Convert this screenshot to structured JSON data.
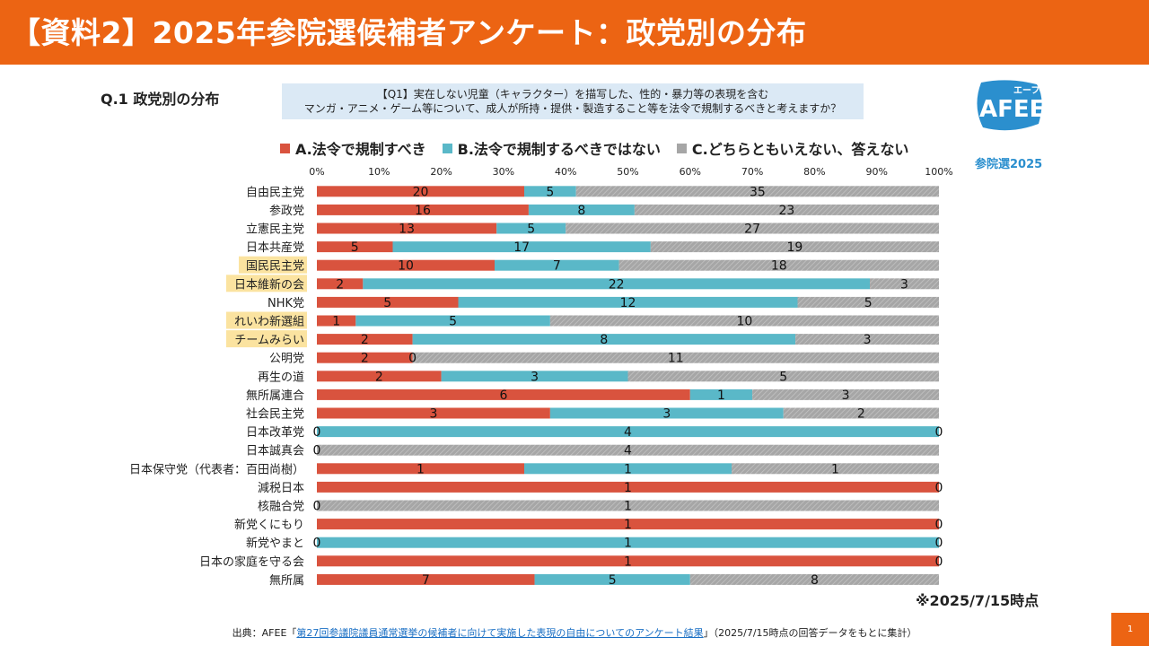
{
  "header": {
    "title": "【資料2】2025年参院選候補者アンケート：政党別の分布"
  },
  "question": {
    "label": "Q.1 政党別の分布",
    "line1": "【Q1】実在しない児童（キャラクター）を描写した、性的・暴力等の表現を含む",
    "line2": "マンガ・アニメ・ゲーム等について、成人が所持・提供・製造すること等を法令で規制するべきと考えますか？"
  },
  "logo": {
    "text_top": "エーフィー",
    "text_main": "AFEE",
    "caption": "参院選2025"
  },
  "legend": [
    {
      "label": "A.法令で規制すべき",
      "color": "#d9533e"
    },
    {
      "label": "B.法令で規制するべきではない",
      "color": "#5ab8c8"
    },
    {
      "label": "C.どちらともいえない、答えない",
      "color": "#a6a6a6"
    }
  ],
  "chart_data": {
    "type": "bar",
    "orientation": "horizontal-stacked-100",
    "x_ticks": [
      "0%",
      "10%",
      "20%",
      "30%",
      "40%",
      "50%",
      "60%",
      "70%",
      "80%",
      "90%",
      "100%"
    ],
    "xlim": [
      0,
      100
    ],
    "categories": [
      "自由民主党",
      "参政党",
      "立憲民主党",
      "日本共産党",
      "国民民主党",
      "日本維新の会",
      "NHK党",
      "れいわ新選組",
      "チームみらい",
      "公明党",
      "再生の道",
      "無所属連合",
      "社会民主党",
      "日本改革党",
      "日本誠真会",
      "日本保守党（代表者：百田尚樹）",
      "減税日本",
      "核融合党",
      "新党くにもり",
      "新党やまと",
      "日本の家庭を守る会",
      "無所属"
    ],
    "highlighted": [
      "国民民主党",
      "日本維新の会",
      "れいわ新選組",
      "チームみらい"
    ],
    "series": [
      {
        "name": "A.法令で規制すべき",
        "values": [
          20,
          16,
          13,
          5,
          10,
          2,
          5,
          1,
          2,
          2,
          2,
          6,
          3,
          0,
          0,
          1,
          1,
          0,
          1,
          0,
          1,
          7
        ]
      },
      {
        "name": "B.法令で規制するべきではない",
        "values": [
          5,
          8,
          5,
          17,
          7,
          22,
          12,
          5,
          8,
          0,
          3,
          1,
          3,
          4,
          0,
          1,
          0,
          0,
          0,
          1,
          0,
          5
        ]
      },
      {
        "name": "C.どちらともいえない、答えない",
        "values": [
          35,
          23,
          27,
          19,
          18,
          3,
          5,
          10,
          3,
          11,
          5,
          3,
          2,
          0,
          4,
          1,
          0,
          1,
          0,
          0,
          0,
          8
        ]
      }
    ],
    "data_label_text": [
      [
        "20",
        "5",
        "35"
      ],
      [
        "16",
        "8",
        "23"
      ],
      [
        "13",
        "5",
        "27"
      ],
      [
        "5",
        "17",
        "19"
      ],
      [
        "10",
        "7",
        "18"
      ],
      [
        "2",
        "22",
        "3"
      ],
      [
        "5",
        "12",
        "5"
      ],
      [
        "1",
        "5",
        "10"
      ],
      [
        "2",
        "8",
        "3"
      ],
      [
        "2",
        "0",
        "11"
      ],
      [
        "2",
        "3",
        "5"
      ],
      [
        "6",
        "1",
        "3"
      ],
      [
        "3",
        "3",
        "2"
      ],
      [
        "0",
        "4",
        "0"
      ],
      [
        "0",
        "",
        "4"
      ],
      [
        "1",
        "1",
        "1"
      ],
      [
        "1",
        "",
        "0"
      ],
      [
        "0",
        "",
        "1"
      ],
      [
        "1",
        "",
        "0"
      ],
      [
        "0",
        "1",
        "0"
      ],
      [
        "1",
        "",
        "0"
      ],
      [
        "7",
        "5",
        "8"
      ]
    ]
  },
  "note": "※2025/7/15時点",
  "footer": {
    "prefix": "出典：AFEE「",
    "link": "第27回参議院議員通常選挙の候補者に向けて実施した表現の自由についてのアンケート結果",
    "suffix": "」（2025/7/15時点の回答データをもとに集計）"
  },
  "page_number": "1"
}
